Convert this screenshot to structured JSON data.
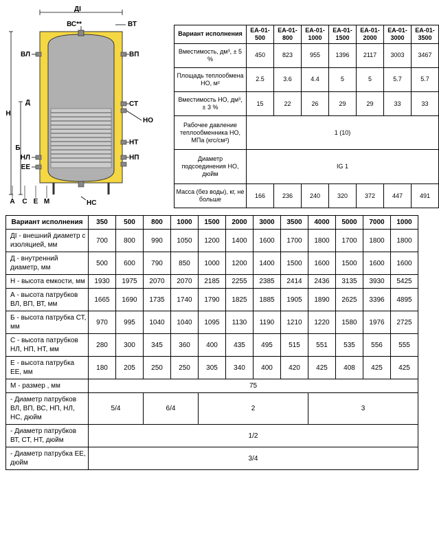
{
  "diagram": {
    "body_fill": "#f4d742",
    "body_stroke": "#333333",
    "coil_fill": "#cccccc",
    "coil_stroke": "#555555",
    "label_color": "#000000",
    "labels": {
      "DI": "ДІ",
      "BC": "ВС**",
      "VT": "ВТ",
      "VL": "ВЛ",
      "VP": "ВП",
      "D": "Д",
      "CT": "СТ",
      "HO": "НО",
      "NT": "НТ",
      "NL": "НЛ",
      "NP": "НП",
      "EE": "ЕЕ",
      "NC": "НС",
      "H": "Н",
      "B": "Б",
      "A": "А",
      "C": "С",
      "E": "Е",
      "M": "М"
    }
  },
  "top_table": {
    "header_label": "Вариант исполнения",
    "columns": [
      "ЕА-01-500",
      "ЕА-01-800",
      "ЕА-01-1000",
      "ЕА-01-1500",
      "ЕА-01-2000",
      "ЕА-01-3000",
      "ЕА-01-3500"
    ],
    "rows": [
      {
        "label": "Вместимость, дм³, ± 5 %",
        "cells": [
          "450",
          "823",
          "955",
          "1396",
          "2117",
          "3003",
          "3467"
        ],
        "colspan": [
          1,
          1,
          1,
          1,
          1,
          1,
          1
        ]
      },
      {
        "label": "Площадь теплообмена НО, м²",
        "cells": [
          "2.5",
          "3.6",
          "4.4",
          "5",
          "5",
          "5.7",
          "5.7"
        ],
        "colspan": [
          1,
          1,
          1,
          1,
          1,
          1,
          1
        ]
      },
      {
        "label": "Вместимость НО, дм³, ± 3 %",
        "cells": [
          "15",
          "22",
          "26",
          "29",
          "29",
          "33",
          "33"
        ],
        "colspan": [
          1,
          1,
          1,
          1,
          1,
          1,
          1
        ]
      },
      {
        "label": "Рабочее давление теплообменника НО, МПа (кгс/см²)",
        "cells": [
          "1 (10)"
        ],
        "colspan": [
          7
        ]
      },
      {
        "label": "Диаметр подсоединения НО, дюйм",
        "cells": [
          "IG 1"
        ],
        "colspan": [
          7
        ]
      },
      {
        "label": "Масса (без воды), кг, не больше",
        "cells": [
          "166",
          "236",
          "240",
          "320",
          "372",
          "447",
          "491"
        ],
        "colspan": [
          1,
          1,
          1,
          1,
          1,
          1,
          1
        ]
      }
    ]
  },
  "bottom_table": {
    "header_label": "Вариант исполнения",
    "columns": [
      "350",
      "500",
      "800",
      "1000",
      "1500",
      "2000",
      "3000",
      "3500",
      "4000",
      "5000",
      "7000",
      "1000"
    ],
    "rows": [
      {
        "label": "ДІ - внешний диаметр с изоляцией, мм",
        "cells": [
          "700",
          "800",
          "990",
          "1050",
          "1200",
          "1400",
          "1600",
          "1700",
          "1800",
          "1700",
          "1800",
          "1800"
        ],
        "colspan": [
          1,
          1,
          1,
          1,
          1,
          1,
          1,
          1,
          1,
          1,
          1,
          1
        ]
      },
      {
        "label": "Д - внутренний диаметр, мм",
        "cells": [
          "500",
          "600",
          "790",
          "850",
          "1000",
          "1200",
          "1400",
          "1500",
          "1600",
          "1500",
          "1600",
          "1600"
        ],
        "colspan": [
          1,
          1,
          1,
          1,
          1,
          1,
          1,
          1,
          1,
          1,
          1,
          1
        ]
      },
      {
        "label": "Н - высота емкости, мм",
        "cells": [
          "1930",
          "1975",
          "2070",
          "2070",
          "2185",
          "2255",
          "2385",
          "2414",
          "2436",
          "3135",
          "3930",
          "5425"
        ],
        "colspan": [
          1,
          1,
          1,
          1,
          1,
          1,
          1,
          1,
          1,
          1,
          1,
          1
        ]
      },
      {
        "label": "А -   высота патрубков ВЛ, ВП, ВТ, мм",
        "cells": [
          "1665",
          "1690",
          "1735",
          "1740",
          "1790",
          "1825",
          "1885",
          "1905",
          "1890",
          "2625",
          "3396",
          "4895"
        ],
        "colspan": [
          1,
          1,
          1,
          1,
          1,
          1,
          1,
          1,
          1,
          1,
          1,
          1
        ]
      },
      {
        "label": "Б - высота патрубка СТ, мм",
        "cells": [
          "970",
          "995",
          "1040",
          "1040",
          "1095",
          "1130",
          "1190",
          "1210",
          "1220",
          "1580",
          "1976",
          "2725"
        ],
        "colspan": [
          1,
          1,
          1,
          1,
          1,
          1,
          1,
          1,
          1,
          1,
          1,
          1
        ]
      },
      {
        "label": "С - высота патрубков НЛ, НП, НТ, мм",
        "cells": [
          "280",
          "300",
          "345",
          "360",
          "400",
          "435",
          "495",
          "515",
          "551",
          "535",
          "556",
          "555"
        ],
        "colspan": [
          1,
          1,
          1,
          1,
          1,
          1,
          1,
          1,
          1,
          1,
          1,
          1
        ]
      },
      {
        "label": "Е - высота патрубка ЕЕ, мм",
        "cells": [
          "180",
          "205",
          "250",
          "250",
          "305",
          "340",
          "400",
          "420",
          "425",
          "408",
          "425",
          "425"
        ],
        "colspan": [
          1,
          1,
          1,
          1,
          1,
          1,
          1,
          1,
          1,
          1,
          1,
          1
        ]
      },
      {
        "label": "М - размер , мм",
        "cells": [
          "75"
        ],
        "colspan": [
          12
        ]
      },
      {
        "label": " - Диаметр патрубков ВЛ, ВП, ВС, НП, НЛ, НС, дюйм",
        "cells": [
          "5/4",
          "6/4",
          "2",
          "3"
        ],
        "colspan": [
          2,
          2,
          4,
          4
        ]
      },
      {
        "label": " - Диаметр патрубков ВТ, СТ, НТ, дюйм",
        "cells": [
          "1/2"
        ],
        "colspan": [
          12
        ]
      },
      {
        "label": " - Диаметр патрубка ЕЕ, дюйм",
        "cells": [
          "3/4"
        ],
        "colspan": [
          12
        ]
      }
    ]
  }
}
